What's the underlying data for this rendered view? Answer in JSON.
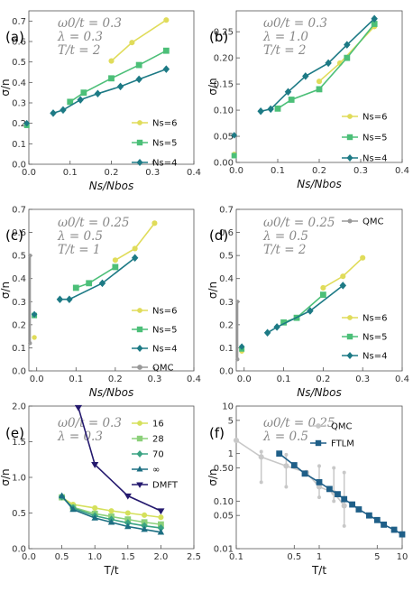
{
  "figure": {
    "colors": {
      "yellow": "#e0dc5a",
      "green": "#4cbf78",
      "teal": "#1d7a85",
      "qmc_gray": "#999999",
      "lightgray": "#c8c8c8",
      "navy": "#24196e",
      "blue": "#1f5f88",
      "t16": "#d5e05b",
      "t28": "#8cd07a",
      "t70": "#3aa383",
      "tinf": "#1c6e82"
    }
  },
  "chart_data": [
    {
      "id": "a",
      "panel_label": "(a)",
      "type": "line",
      "annotation": [
        "ω0/t = 0.3",
        "λ = 0.3",
        "T/t = 2"
      ],
      "xlabel": "Ns/Nbos",
      "ylabel": "σ/n",
      "xlim": [
        0,
        0.4
      ],
      "ylim": [
        0,
        0.75
      ],
      "xticks": [
        "0.0",
        "0.1",
        "0.2",
        "0.3",
        "0.4"
      ],
      "yticks": [
        "0.0",
        "0.1",
        "0.2",
        "0.3",
        "0.4",
        "0.5",
        "0.6",
        "0.7"
      ],
      "legend": "bottom-right",
      "series": [
        {
          "name": "Ns=6",
          "color": "yellow",
          "marker": "circle",
          "x": [
            0.2,
            0.25,
            0.333
          ],
          "y": [
            0.505,
            0.595,
            0.705
          ]
        },
        {
          "name": "Ns=5",
          "color": "green",
          "marker": "square",
          "x": [
            0.1,
            0.133,
            0.2,
            0.267,
            0.333
          ],
          "y": [
            0.305,
            0.35,
            0.42,
            0.485,
            0.555
          ]
        },
        {
          "name": "Ns=4",
          "color": "teal",
          "marker": "diamond",
          "x": [
            0.059,
            0.083,
            0.125,
            0.167,
            0.222,
            0.267,
            0.333
          ],
          "y": [
            0.25,
            0.265,
            0.315,
            0.345,
            0.38,
            0.415,
            0.465
          ]
        }
      ],
      "extra_points": [
        {
          "color": "yellow",
          "marker": "circle",
          "x": -0.005,
          "y": 0.195
        },
        {
          "color": "green",
          "marker": "square",
          "x": -0.005,
          "y": 0.19
        },
        {
          "color": "teal",
          "marker": "diamond",
          "x": -0.005,
          "y": 0.2
        }
      ]
    },
    {
      "id": "b",
      "panel_label": "(b)",
      "type": "line",
      "annotation": [
        "ω0/t = 0.3",
        "λ = 1.0",
        "T/t = 2"
      ],
      "xlabel": "Ns/Nbos",
      "ylabel": "σ/n",
      "xlim": [
        0,
        0.4
      ],
      "ylim": [
        0,
        0.29
      ],
      "xticks": [
        "0.0",
        "0.1",
        "0.2",
        "0.3",
        "0.4"
      ],
      "yticks": [
        "0.00",
        "0.05",
        "0.10",
        "0.15",
        "0.20",
        "0.25"
      ],
      "legend": "bottom-right",
      "series": [
        {
          "name": "Ns=6",
          "color": "yellow",
          "marker": "circle",
          "x": [
            0.2,
            0.25,
            0.333
          ],
          "y": [
            0.155,
            0.19,
            0.26
          ]
        },
        {
          "name": "Ns=5",
          "color": "green",
          "marker": "square",
          "x": [
            0.1,
            0.133,
            0.2,
            0.267,
            0.333
          ],
          "y": [
            0.103,
            0.12,
            0.14,
            0.2,
            0.265
          ]
        },
        {
          "name": "Ns=4",
          "color": "teal",
          "marker": "diamond",
          "x": [
            0.059,
            0.083,
            0.125,
            0.167,
            0.222,
            0.267,
            0.333
          ],
          "y": [
            0.098,
            0.102,
            0.135,
            0.165,
            0.19,
            0.225,
            0.275
          ]
        }
      ],
      "extra_points": [
        {
          "color": "yellow",
          "marker": "circle",
          "x": -0.005,
          "y": 0.016
        },
        {
          "color": "green",
          "marker": "square",
          "x": -0.005,
          "y": 0.013
        },
        {
          "color": "teal",
          "marker": "diamond",
          "x": -0.005,
          "y": 0.052
        }
      ]
    },
    {
      "id": "c",
      "panel_label": "(c)",
      "type": "line",
      "annotation": [
        "ω0/t = 0.25",
        "λ = 0.5",
        "T/t = 1"
      ],
      "xlabel": "Ns/Nbos",
      "ylabel": "σ/n",
      "xlim": [
        -0.02,
        0.4
      ],
      "ylim": [
        0,
        0.7
      ],
      "xticks": [
        "0.0",
        "0.1",
        "0.2",
        "0.3",
        "0.4"
      ],
      "yticks": [
        "0.0",
        "0.1",
        "0.2",
        "0.3",
        "0.4",
        "0.5",
        "0.6",
        "0.7"
      ],
      "legend": "bottom-right",
      "series": [
        {
          "name": "Ns=6",
          "color": "yellow",
          "marker": "circle",
          "x": [
            0.2,
            0.25,
            0.3
          ],
          "y": [
            0.48,
            0.53,
            0.64
          ]
        },
        {
          "name": "Ns=5",
          "color": "green",
          "marker": "square",
          "x": [
            0.1,
            0.133,
            0.2
          ],
          "y": [
            0.36,
            0.38,
            0.45
          ]
        },
        {
          "name": "Ns=4",
          "color": "teal",
          "marker": "diamond",
          "x": [
            0.059,
            0.083,
            0.167,
            0.25
          ],
          "y": [
            0.31,
            0.31,
            0.38,
            0.49
          ]
        },
        {
          "name": "QMC",
          "color": "qmc_gray",
          "marker": "circle",
          "x": [],
          "y": []
        }
      ],
      "qmc_errorbar": {
        "x": -0.017,
        "ylow": 0.12,
        "yhigh": 0.5,
        "points": [
          0.12,
          0.5
        ]
      },
      "extra_points": [
        {
          "color": "yellow",
          "marker": "circle",
          "x": -0.006,
          "y": 0.145
        },
        {
          "color": "green",
          "marker": "square",
          "x": -0.006,
          "y": 0.24
        },
        {
          "color": "teal",
          "marker": "diamond",
          "x": -0.006,
          "y": 0.245
        }
      ]
    },
    {
      "id": "d",
      "panel_label": "(d)",
      "type": "line",
      "annotation": [
        "ω0/t = 0.25",
        "λ = 0.5",
        "T/t = 2"
      ],
      "xlabel": "Ns/Nbos",
      "ylabel": "σ/n",
      "xlim": [
        -0.02,
        0.4
      ],
      "ylim": [
        0,
        0.7
      ],
      "xticks": [
        "0.0",
        "0.1",
        "0.2",
        "0.3",
        "0.4"
      ],
      "yticks": [
        "0.0",
        "0.1",
        "0.2",
        "0.3",
        "0.4",
        "0.5",
        "0.6",
        "0.7"
      ],
      "legend": "bottom-right",
      "legend_qmc": "top-right",
      "series": [
        {
          "name": "Ns=6",
          "color": "yellow",
          "marker": "circle",
          "x": [
            0.2,
            0.25,
            0.3
          ],
          "y": [
            0.36,
            0.41,
            0.49
          ]
        },
        {
          "name": "Ns=5",
          "color": "green",
          "marker": "square",
          "x": [
            0.1,
            0.133,
            0.2
          ],
          "y": [
            0.21,
            0.23,
            0.33
          ]
        },
        {
          "name": "Ns=4",
          "color": "teal",
          "marker": "diamond",
          "x": [
            0.059,
            0.083,
            0.167,
            0.25
          ],
          "y": [
            0.165,
            0.19,
            0.26,
            0.37
          ]
        },
        {
          "name": "QMC",
          "color": "qmc_gray",
          "marker": "circle",
          "x": [],
          "y": []
        }
      ],
      "qmc_errorbar": {
        "x": -0.017,
        "ylow": 0.05,
        "yhigh": 0.3,
        "points": [
          0.05,
          0.3
        ]
      },
      "extra_points": [
        {
          "color": "yellow",
          "marker": "circle",
          "x": -0.006,
          "y": 0.085
        },
        {
          "color": "green",
          "marker": "square",
          "x": -0.006,
          "y": 0.095
        },
        {
          "color": "teal",
          "marker": "diamond",
          "x": -0.006,
          "y": 0.105
        }
      ]
    },
    {
      "id": "e",
      "panel_label": "(e)",
      "type": "line",
      "annotation": [
        "ω0/t = 0.3",
        "λ = 0.3"
      ],
      "xlabel": "T/t",
      "ylabel": "σ/n",
      "xlim": [
        0,
        2.5
      ],
      "ylim": [
        0,
        2.0
      ],
      "xticks": [
        "0.0",
        "0.5",
        "1.0",
        "1.5",
        "2.0",
        "2.5"
      ],
      "yticks": [
        "0.0",
        "0.5",
        "1.0",
        "1.5",
        "2.0"
      ],
      "legend": "right",
      "series": [
        {
          "name": "16",
          "color": "t16",
          "marker": "circle",
          "x": [
            0.5,
            0.67,
            1.0,
            1.25,
            1.5,
            1.75,
            2.0
          ],
          "y": [
            0.72,
            0.62,
            0.57,
            0.53,
            0.5,
            0.47,
            0.44
          ]
        },
        {
          "name": "28",
          "color": "t28",
          "marker": "square",
          "x": [
            0.5,
            0.67,
            1.0,
            1.25,
            1.5,
            1.75,
            2.0
          ],
          "y": [
            0.72,
            0.58,
            0.49,
            0.45,
            0.41,
            0.37,
            0.34
          ]
        },
        {
          "name": "70",
          "color": "t70",
          "marker": "diamond",
          "x": [
            0.5,
            0.67,
            1.0,
            1.25,
            1.5,
            1.75,
            2.0
          ],
          "y": [
            0.73,
            0.57,
            0.46,
            0.41,
            0.36,
            0.32,
            0.29
          ]
        },
        {
          "name": "∞",
          "color": "tinf",
          "marker": "triangle",
          "x": [
            0.5,
            0.67,
            1.0,
            1.25,
            1.5,
            1.75,
            2.0
          ],
          "y": [
            0.74,
            0.55,
            0.43,
            0.37,
            0.31,
            0.27,
            0.23
          ]
        },
        {
          "name": "DMFT",
          "color": "navy",
          "marker": "downtriangle",
          "x": [
            0.75,
            1.0,
            1.5,
            2.0
          ],
          "y": [
            1.98,
            1.18,
            0.74,
            0.53
          ]
        }
      ]
    },
    {
      "id": "f",
      "panel_label": "(f)",
      "type": "line",
      "annotation": [
        "ω0/t = 0.25",
        "λ = 0.5"
      ],
      "xlabel": "T/t",
      "ylabel": "σ/n",
      "xscale": "log",
      "yscale": "log",
      "xlim": [
        0.1,
        10
      ],
      "ylim": [
        0.01,
        10
      ],
      "xticks": [
        "0.1",
        "0.5",
        "1",
        "5",
        "10"
      ],
      "yticks": [
        "0.01",
        "0.05",
        "0.10",
        "0.50",
        "1",
        "5",
        "10"
      ],
      "legend": "top-right",
      "series": [
        {
          "name": "QMC",
          "color": "lightgray",
          "marker": "circle",
          "x": [
            0.1,
            0.2,
            0.4,
            0.7,
            1.0,
            1.5,
            2.0
          ],
          "y": [
            1.9,
            0.85,
            0.55,
            0.4,
            0.2,
            0.15,
            0.08
          ]
        },
        {
          "name": "FTLM",
          "color": "blue",
          "marker": "square",
          "x": [
            0.33,
            0.5,
            0.67,
            1.0,
            1.33,
            1.67,
            2.0,
            2.5,
            3.0,
            4.0,
            5.0,
            6.0,
            8.0,
            10.0
          ],
          "y": [
            1.0,
            0.57,
            0.38,
            0.25,
            0.18,
            0.14,
            0.11,
            0.085,
            0.067,
            0.05,
            0.04,
            0.032,
            0.025,
            0.02
          ]
        }
      ],
      "qmc_errorbars": [
        {
          "x": 0.2,
          "ylow": 0.25,
          "yhigh": 1.1
        },
        {
          "x": 0.4,
          "ylow": 0.2,
          "yhigh": 0.95
        },
        {
          "x": 1.0,
          "ylow": 0.12,
          "yhigh": 0.55
        },
        {
          "x": 1.5,
          "ylow": 0.1,
          "yhigh": 0.5
        },
        {
          "x": 2.0,
          "ylow": 0.03,
          "yhigh": 0.4
        }
      ]
    }
  ]
}
